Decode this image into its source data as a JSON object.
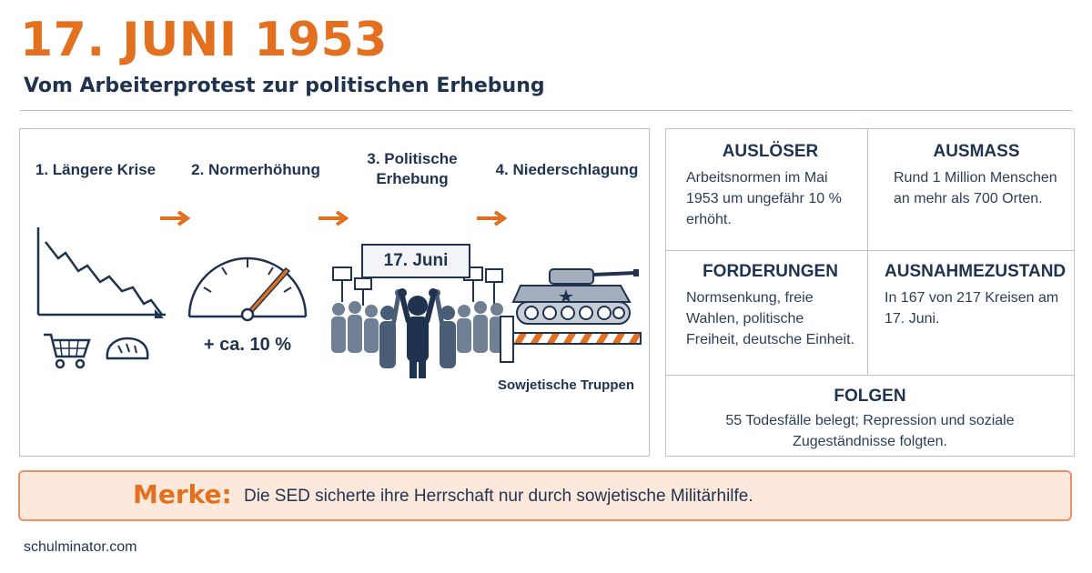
{
  "header": {
    "title": "17. JUNI 1953",
    "subtitle": "Vom Arbeiterprotest zur politischen Erhebung"
  },
  "process": {
    "steps": [
      {
        "label": "1. Längere Krise",
        "icon": "declining-chart-with-cart-and-bread"
      },
      {
        "label": "2. Normerhöhung",
        "icon": "gauge-meter"
      },
      {
        "label": "3. Politische Erhebung",
        "icon": "protest-crowd"
      },
      {
        "label": "4. Niederschlagung",
        "icon": "tank-and-barrier"
      }
    ],
    "meter_value": "+ ca. 10 %",
    "banner_text": "17. Juni",
    "troops_label": "Sowjetische Truppen"
  },
  "facts": {
    "ausloeser": {
      "title": "AUSLÖSER",
      "text": "Arbeitsnormen im Mai 1953 um ungefähr 10 % erhöht."
    },
    "ausmass": {
      "title": "AUSMASS",
      "text": "Rund 1 Million Menschen an mehr als 700 Orten."
    },
    "forderungen": {
      "title": "FORDERUNGEN",
      "text": "Normsenkung, freie Wahlen, politische Freiheit, deutsche Einheit."
    },
    "ausnahmezustand": {
      "title": "AUSNAHMEZUSTAND",
      "text": "In 167 von 217 Kreisen am 17. Juni."
    },
    "folgen": {
      "title": "FOLGEN",
      "text": "55 Todesfälle belegt; Repression und soziale Zugeständnisse folgten."
    }
  },
  "merke": {
    "label": "Merke:",
    "text": "Die SED sicherte ihre Herrschaft nur durch sowjetische Militärhilfe."
  },
  "footer": {
    "site": "schulminator.com"
  },
  "colors": {
    "accent": "#e2701f",
    "navy": "#1f3350",
    "border": "#b9c3cf",
    "merke_bg": "#fde9dc"
  }
}
